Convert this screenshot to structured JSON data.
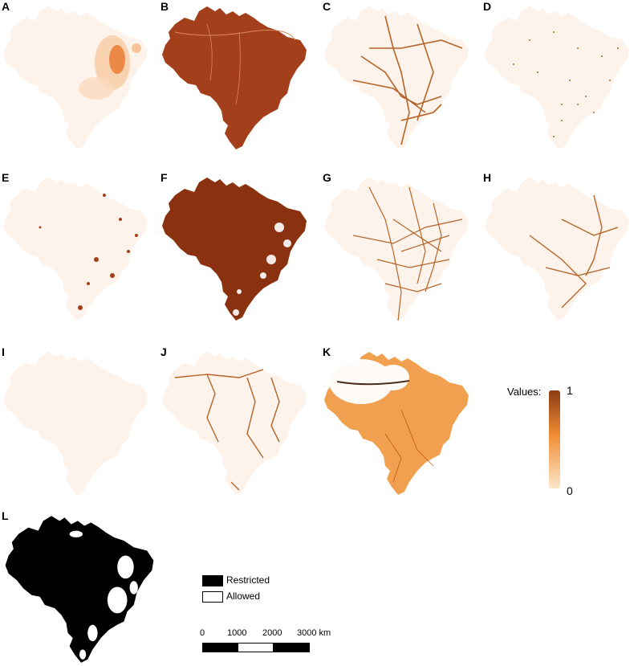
{
  "panels": [
    {
      "label": "A",
      "fill": "#fdf3ea",
      "style": "hotspot"
    },
    {
      "label": "B",
      "fill": "#a3401b",
      "style": "solid-dark"
    },
    {
      "label": "C",
      "fill": "#fdf3ea",
      "style": "lines"
    },
    {
      "label": "D",
      "fill": "#fdf3ea",
      "style": "dots"
    },
    {
      "label": "E",
      "fill": "#fdf3ea",
      "style": "blobs"
    },
    {
      "label": "F",
      "fill": "#8a3210",
      "style": "solid-patchy"
    },
    {
      "label": "G",
      "fill": "#fdf3ea",
      "style": "dense-lines"
    },
    {
      "label": "H",
      "fill": "#fdf3ea",
      "style": "lines"
    },
    {
      "label": "I",
      "fill": "#fdf3ea",
      "style": "plain"
    },
    {
      "label": "J",
      "fill": "#fdf3ea",
      "style": "rivers"
    },
    {
      "label": "K",
      "fill": "#f0a04f",
      "style": "mixed"
    },
    {
      "label": "L",
      "fill": "#000000",
      "style": "restricted"
    }
  ],
  "legend": {
    "title": "Values:",
    "max": "1",
    "min": "0",
    "colors": {
      "high": "#8a3a12",
      "mid": "#f08c35",
      "low": "#fde6c8"
    }
  },
  "restriction_key": {
    "restricted": "Restricted",
    "allowed": "Allowed"
  },
  "scale_bar": {
    "labels": [
      "0",
      "1000",
      "2000",
      "3000 km"
    ]
  },
  "colors": {
    "base": "#fdf3ea",
    "line": "#b5642a",
    "dark": "#a3401b"
  }
}
